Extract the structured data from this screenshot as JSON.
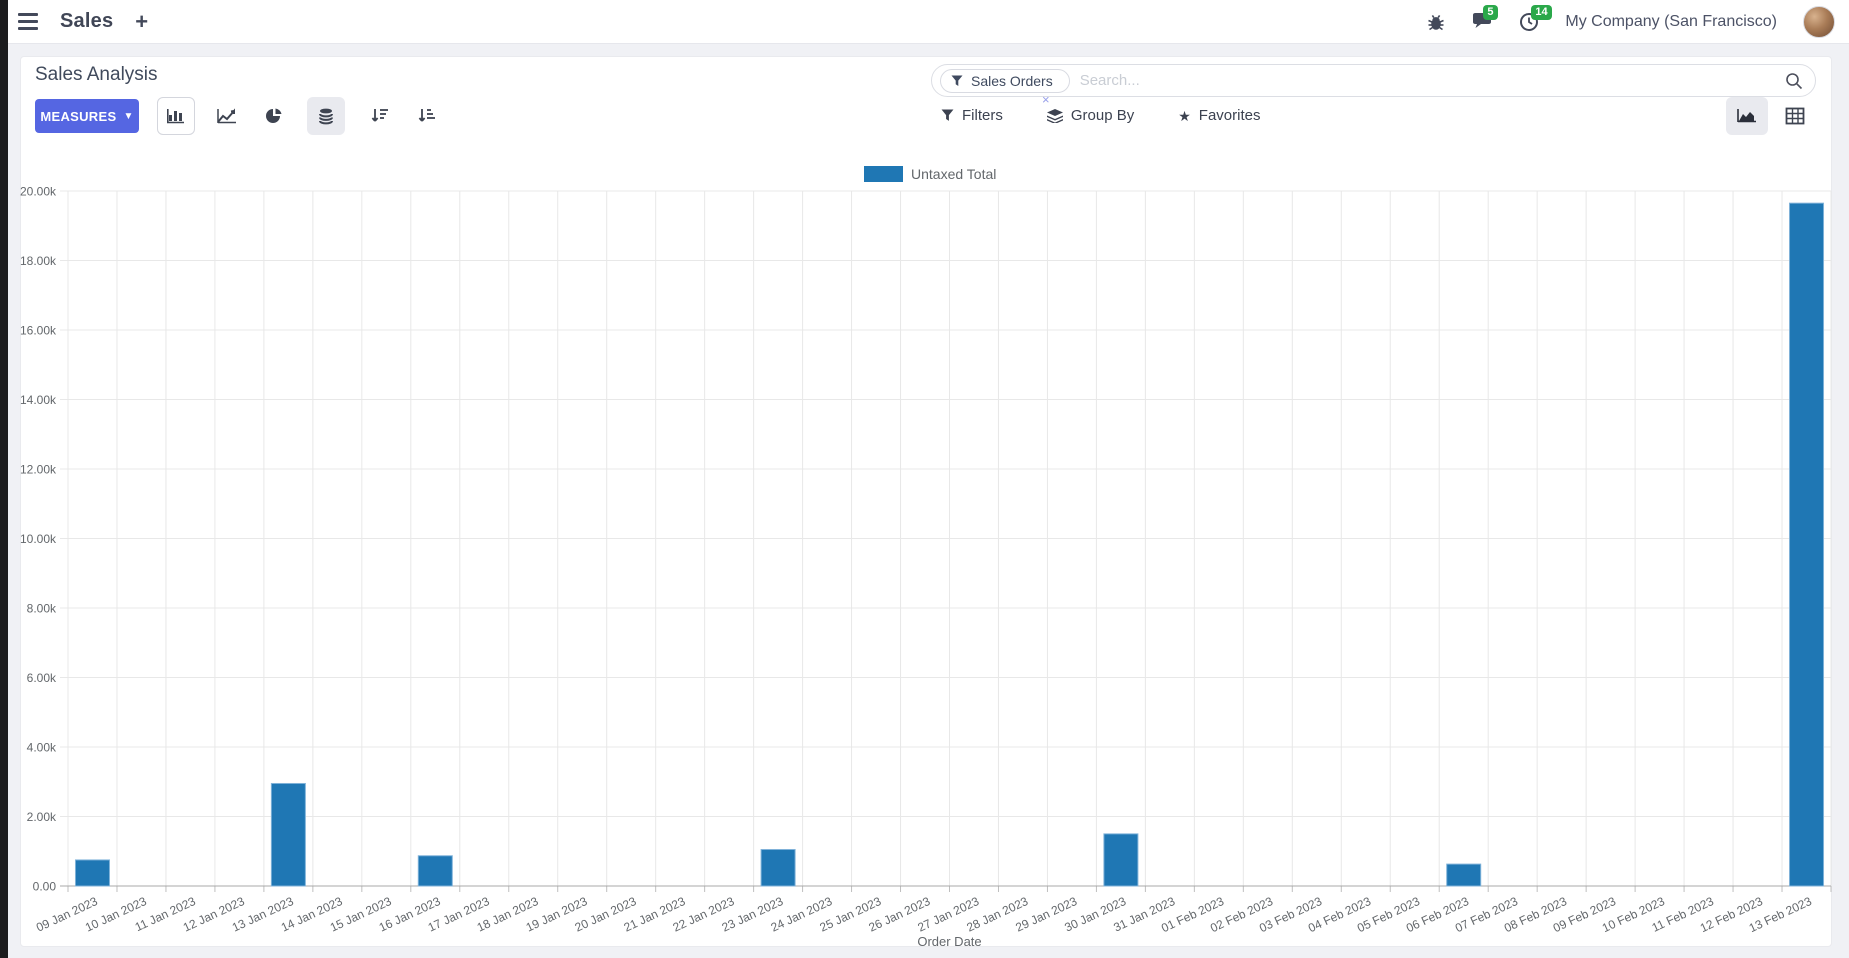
{
  "navbar": {
    "app": "Sales",
    "plus": "+",
    "message_count": "5",
    "activity_count": "14",
    "company": "My Company (San Francisco)"
  },
  "panel": {
    "title": "Sales Analysis",
    "measures": "MEASURES",
    "filters": "Filters",
    "group_by": "Group By",
    "favorites": "Favorites",
    "search_facet": "Sales Orders",
    "facet_close": "×",
    "search_placeholder": "Search..."
  },
  "chart_data": {
    "type": "bar",
    "title": "",
    "xlabel": "Order Date",
    "ylabel": "",
    "ylim": [
      0,
      20000
    ],
    "ytick_step": 2000,
    "ytick_format": "thousands-k",
    "grid": true,
    "legend_position": "top",
    "bar_color": "#1f77b4",
    "bar_border_color": "#7fb2d9",
    "categories": [
      "09 Jan 2023",
      "10 Jan 2023",
      "11 Jan 2023",
      "12 Jan 2023",
      "13 Jan 2023",
      "14 Jan 2023",
      "15 Jan 2023",
      "16 Jan 2023",
      "17 Jan 2023",
      "18 Jan 2023",
      "19 Jan 2023",
      "20 Jan 2023",
      "21 Jan 2023",
      "22 Jan 2023",
      "23 Jan 2023",
      "24 Jan 2023",
      "25 Jan 2023",
      "26 Jan 2023",
      "27 Jan 2023",
      "28 Jan 2023",
      "29 Jan 2023",
      "30 Jan 2023",
      "31 Jan 2023",
      "01 Feb 2023",
      "02 Feb 2023",
      "03 Feb 2023",
      "04 Feb 2023",
      "05 Feb 2023",
      "06 Feb 2023",
      "07 Feb 2023",
      "08 Feb 2023",
      "09 Feb 2023",
      "10 Feb 2023",
      "11 Feb 2023",
      "12 Feb 2023",
      "13 Feb 2023"
    ],
    "series": [
      {
        "name": "Untaxed Total",
        "values": [
          750,
          0,
          0,
          0,
          2950,
          0,
          0,
          870,
          0,
          0,
          0,
          0,
          0,
          0,
          1050,
          0,
          0,
          0,
          0,
          0,
          0,
          1500,
          0,
          0,
          0,
          0,
          0,
          0,
          630,
          0,
          0,
          0,
          0,
          0,
          0,
          19650
        ]
      }
    ]
  }
}
